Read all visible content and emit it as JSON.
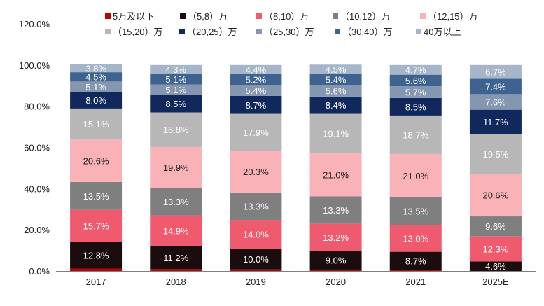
{
  "chart_data": {
    "type": "stacked-bar",
    "categories": [
      "2017",
      "2018",
      "2019",
      "2020",
      "2021",
      "2025E"
    ],
    "ylim": [
      0,
      120
    ],
    "yticks": [
      0,
      20,
      40,
      60,
      80,
      100,
      120
    ],
    "ytick_labels": [
      "0.0%",
      "20.0%",
      "40.0%",
      "60.0%",
      "80.0%",
      "100.0%",
      "120.0%"
    ],
    "series": [
      {
        "name": "5万及以下",
        "color": "#c00000",
        "values": [
          1.2,
          0.9,
          0.8,
          0.7,
          0.6,
          0.0
        ],
        "labels": [
          "",
          "",
          "",
          "",
          "",
          ""
        ],
        "label_color": "#ffffff"
      },
      {
        "name": "（5,8）万",
        "color": "#1b0d0d",
        "values": [
          12.8,
          11.2,
          10.0,
          9.0,
          8.7,
          4.6
        ],
        "labels": [
          "12.8%",
          "11.2%",
          "10.0%",
          "9.0%",
          "8.7%",
          "4.6%"
        ],
        "label_color": "#ffffff"
      },
      {
        "name": "（8,10）万",
        "color": "#f05a6e",
        "values": [
          15.7,
          14.9,
          14.0,
          13.2,
          13.0,
          12.3
        ],
        "labels": [
          "15.7%",
          "14.9%",
          "14.0%",
          "13.2%",
          "13.0%",
          "12.3%"
        ],
        "label_color": "#ffffff"
      },
      {
        "name": "（10,12）万",
        "color": "#7f7f7f",
        "values": [
          13.5,
          13.3,
          13.3,
          13.3,
          13.5,
          9.6
        ],
        "labels": [
          "13.5%",
          "13.3%",
          "13.3%",
          "13.3%",
          "13.5%",
          "9.6%"
        ],
        "label_color": "#ffffff"
      },
      {
        "name": "（12,15）万",
        "color": "#f9b3b8",
        "values": [
          20.6,
          19.9,
          20.3,
          21.0,
          21.0,
          20.6
        ],
        "labels": [
          "20.6%",
          "19.9%",
          "20.3%",
          "21.0%",
          "21.0%",
          "20.6%"
        ],
        "label_color": "#222222"
      },
      {
        "name": "（15,20）万",
        "color": "#b7b7b7",
        "values": [
          15.1,
          16.8,
          17.9,
          19.1,
          18.7,
          19.5
        ],
        "labels": [
          "15.1%",
          "16.8%",
          "17.9%",
          "19.1%",
          "18.7%",
          "19.5%"
        ],
        "label_color": "#ffffff"
      },
      {
        "name": "（20,25）万",
        "color": "#10285c",
        "values": [
          8.0,
          8.5,
          8.7,
          8.4,
          8.5,
          11.7
        ],
        "labels": [
          "8.0%",
          "8.5%",
          "8.7%",
          "8.4%",
          "8.5%",
          "11.7%"
        ],
        "label_color": "#ffffff"
      },
      {
        "name": "（25,30）万",
        "color": "#8496b0",
        "values": [
          5.1,
          5.1,
          5.4,
          5.6,
          5.7,
          7.6
        ],
        "labels": [
          "5.1%",
          "5.1%",
          "5.4%",
          "5.6%",
          "5.7%",
          "7.6%"
        ],
        "label_color": "#ffffff"
      },
      {
        "name": "（30,40）万",
        "color": "#3e6391",
        "values": [
          4.5,
          5.1,
          5.2,
          5.4,
          5.6,
          7.4
        ],
        "labels": [
          "4.5%",
          "5.1%",
          "5.2%",
          "5.4%",
          "5.6%",
          "7.4%"
        ],
        "label_color": "#ffffff"
      },
      {
        "name": "40万以上",
        "color": "#a6b5c9",
        "values": [
          3.8,
          4.3,
          4.4,
          4.5,
          4.7,
          6.7
        ],
        "labels": [
          "3.8%",
          "4.3%",
          "4.4%",
          "4.5%",
          "4.7%",
          "6.7%"
        ],
        "label_color": "#ffffff"
      }
    ],
    "legend_position": "top"
  }
}
